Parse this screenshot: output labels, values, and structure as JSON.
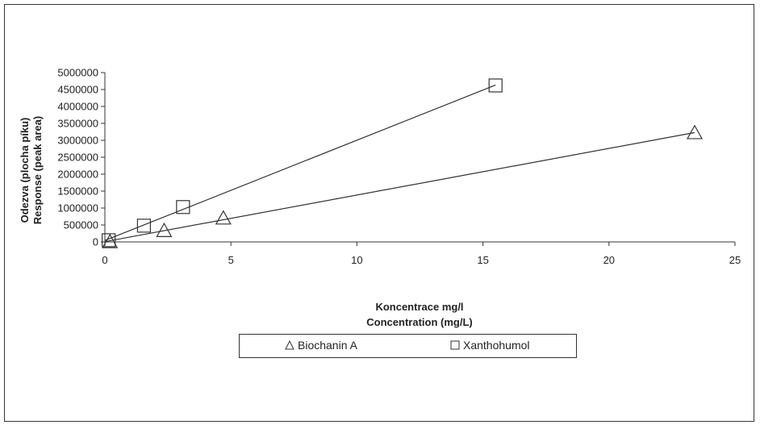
{
  "chart_data": {
    "type": "scatter",
    "title": "",
    "xlabel": [
      "Koncentrace mg/l",
      "Concentration (mg/L)"
    ],
    "ylabel": [
      "Odezva (plocha píku)",
      "Response (peak area)"
    ],
    "xlim": [
      0,
      25
    ],
    "ylim": [
      0,
      5000000
    ],
    "x_ticks": [
      0,
      5,
      10,
      15,
      20,
      25
    ],
    "y_ticks": [
      0,
      500000,
      1000000,
      1500000,
      2000000,
      2500000,
      3000000,
      3500000,
      4000000,
      4500000,
      5000000
    ],
    "grid": false,
    "legend_position": "bottom",
    "trendlines": true,
    "series": [
      {
        "name": "Biochanin A",
        "marker": "triangle",
        "x": [
          0.2,
          2.35,
          4.7,
          23.4
        ],
        "y": [
          0,
          330000,
          700000,
          3220000
        ]
      },
      {
        "name": "Xanthohumol",
        "marker": "square",
        "x": [
          0.15,
          1.55,
          3.1,
          15.5
        ],
        "y": [
          50000,
          480000,
          1030000,
          4620000
        ]
      }
    ]
  },
  "legend": {
    "items": [
      "Biochanin A",
      "Xanthohumol"
    ]
  }
}
